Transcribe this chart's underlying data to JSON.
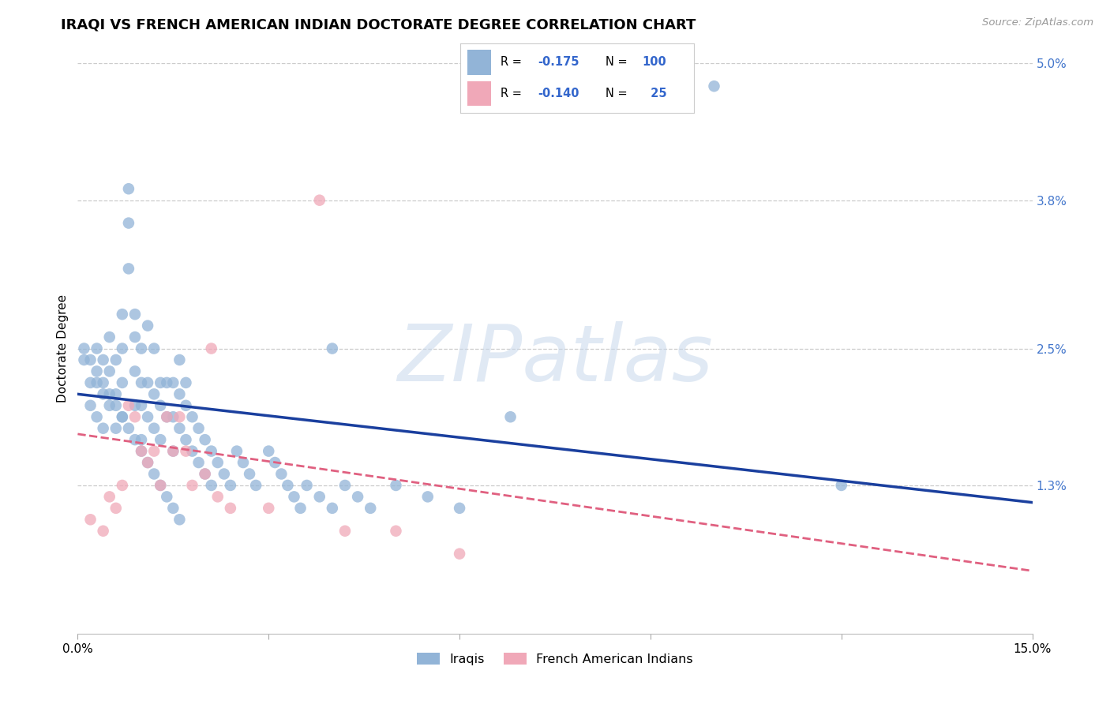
{
  "title": "IRAQI VS FRENCH AMERICAN INDIAN DOCTORATE DEGREE CORRELATION CHART",
  "source": "Source: ZipAtlas.com",
  "ylabel": "Doctorate Degree",
  "xlim": [
    0.0,
    0.15
  ],
  "ylim": [
    0.0,
    0.05
  ],
  "xticks": [
    0.0,
    0.03,
    0.06,
    0.09,
    0.12,
    0.15
  ],
  "xticklabels": [
    "0.0%",
    "",
    "",
    "",
    "",
    "15.0%"
  ],
  "yticks_right": [
    0.013,
    0.025,
    0.038,
    0.05
  ],
  "ytick_right_labels": [
    "1.3%",
    "2.5%",
    "3.8%",
    "5.0%"
  ],
  "grid_color": "#cccccc",
  "background_color": "#ffffff",
  "blue_color": "#92b4d7",
  "pink_color": "#f0a8b8",
  "blue_line_color": "#1a3f9e",
  "pink_line_color": "#e06080",
  "legend_label1": "Iraqis",
  "legend_label2": "French American Indians",
  "watermark": "ZIPatlas",
  "title_fontsize": 13,
  "axis_label_fontsize": 11,
  "tick_fontsize": 11,
  "blue_scatter_x": [
    0.001,
    0.002,
    0.002,
    0.003,
    0.003,
    0.003,
    0.004,
    0.004,
    0.004,
    0.005,
    0.005,
    0.005,
    0.006,
    0.006,
    0.006,
    0.007,
    0.007,
    0.007,
    0.007,
    0.008,
    0.008,
    0.008,
    0.009,
    0.009,
    0.009,
    0.009,
    0.01,
    0.01,
    0.01,
    0.01,
    0.011,
    0.011,
    0.011,
    0.012,
    0.012,
    0.012,
    0.013,
    0.013,
    0.013,
    0.014,
    0.014,
    0.015,
    0.015,
    0.015,
    0.016,
    0.016,
    0.016,
    0.017,
    0.017,
    0.017,
    0.018,
    0.018,
    0.019,
    0.019,
    0.02,
    0.02,
    0.021,
    0.021,
    0.022,
    0.023,
    0.024,
    0.025,
    0.026,
    0.027,
    0.028,
    0.03,
    0.031,
    0.032,
    0.033,
    0.034,
    0.035,
    0.036,
    0.038,
    0.04,
    0.042,
    0.044,
    0.046,
    0.05,
    0.055,
    0.06,
    0.001,
    0.002,
    0.003,
    0.004,
    0.005,
    0.006,
    0.007,
    0.008,
    0.009,
    0.01,
    0.011,
    0.012,
    0.013,
    0.014,
    0.015,
    0.016,
    0.04,
    0.068,
    0.1,
    0.12
  ],
  "blue_scatter_y": [
    0.024,
    0.022,
    0.02,
    0.019,
    0.022,
    0.025,
    0.018,
    0.021,
    0.024,
    0.02,
    0.023,
    0.026,
    0.018,
    0.021,
    0.024,
    0.019,
    0.022,
    0.025,
    0.028,
    0.032,
    0.036,
    0.039,
    0.02,
    0.023,
    0.026,
    0.028,
    0.017,
    0.02,
    0.022,
    0.025,
    0.019,
    0.022,
    0.027,
    0.018,
    0.021,
    0.025,
    0.017,
    0.02,
    0.022,
    0.019,
    0.022,
    0.016,
    0.019,
    0.022,
    0.018,
    0.021,
    0.024,
    0.017,
    0.02,
    0.022,
    0.016,
    0.019,
    0.015,
    0.018,
    0.014,
    0.017,
    0.013,
    0.016,
    0.015,
    0.014,
    0.013,
    0.016,
    0.015,
    0.014,
    0.013,
    0.016,
    0.015,
    0.014,
    0.013,
    0.012,
    0.011,
    0.013,
    0.012,
    0.011,
    0.013,
    0.012,
    0.011,
    0.013,
    0.012,
    0.011,
    0.025,
    0.024,
    0.023,
    0.022,
    0.021,
    0.02,
    0.019,
    0.018,
    0.017,
    0.016,
    0.015,
    0.014,
    0.013,
    0.012,
    0.011,
    0.01,
    0.025,
    0.019,
    0.048,
    0.013
  ],
  "pink_scatter_x": [
    0.002,
    0.004,
    0.005,
    0.006,
    0.007,
    0.008,
    0.009,
    0.01,
    0.011,
    0.012,
    0.013,
    0.014,
    0.015,
    0.016,
    0.017,
    0.018,
    0.02,
    0.022,
    0.021,
    0.024,
    0.03,
    0.038,
    0.042,
    0.05,
    0.06
  ],
  "pink_scatter_y": [
    0.01,
    0.009,
    0.012,
    0.011,
    0.013,
    0.02,
    0.019,
    0.016,
    0.015,
    0.016,
    0.013,
    0.019,
    0.016,
    0.019,
    0.016,
    0.013,
    0.014,
    0.012,
    0.025,
    0.011,
    0.011,
    0.038,
    0.009,
    0.009,
    0.007
  ],
  "blue_line_x0": 0.0,
  "blue_line_y0": 0.021,
  "blue_line_x1": 0.15,
  "blue_line_y1": 0.0115,
  "pink_line_x0": 0.0,
  "pink_line_y0": 0.0175,
  "pink_line_x1": 0.15,
  "pink_line_y1": 0.0055
}
